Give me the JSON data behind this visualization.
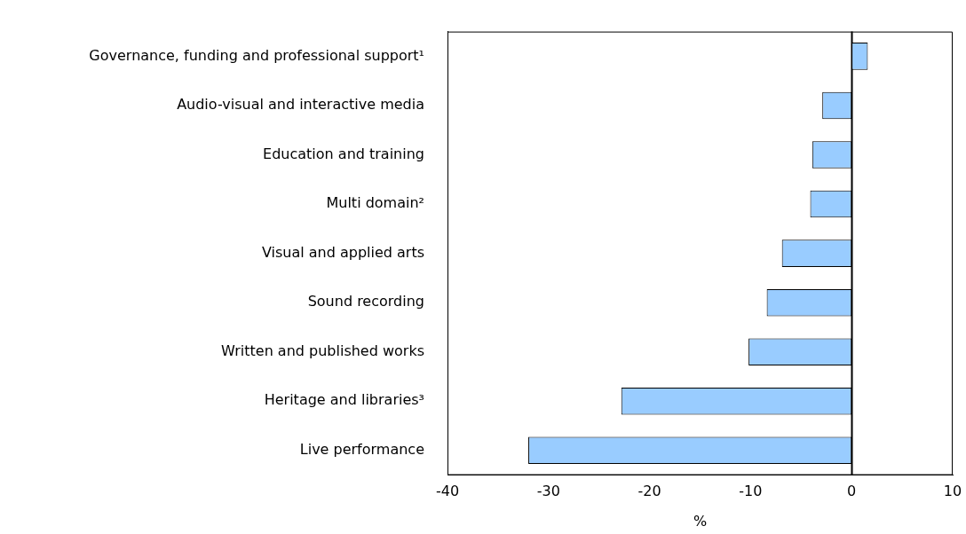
{
  "chart_data": {
    "type": "bar",
    "orientation": "horizontal",
    "xlabel": "%",
    "categories": [
      "Governance, funding and professional support¹",
      "Audio-visual and interactive media",
      "Education and training",
      "Multi domain²",
      "Visual and applied arts",
      "Sound recording",
      "Written and published works",
      "Heritage and libraries³",
      "Live performance"
    ],
    "values": [
      1.6,
      -2.9,
      -3.9,
      -4.1,
      -6.9,
      -8.4,
      -10.2,
      -22.8,
      -32.0
    ],
    "color": "#99ccff",
    "ref_lines": [
      {
        "axis": "x",
        "value": 0
      }
    ],
    "xlim": [
      -40,
      10
    ],
    "xticks": [
      -40,
      -30,
      -20,
      -10,
      0,
      10
    ],
    "grid": false
  }
}
